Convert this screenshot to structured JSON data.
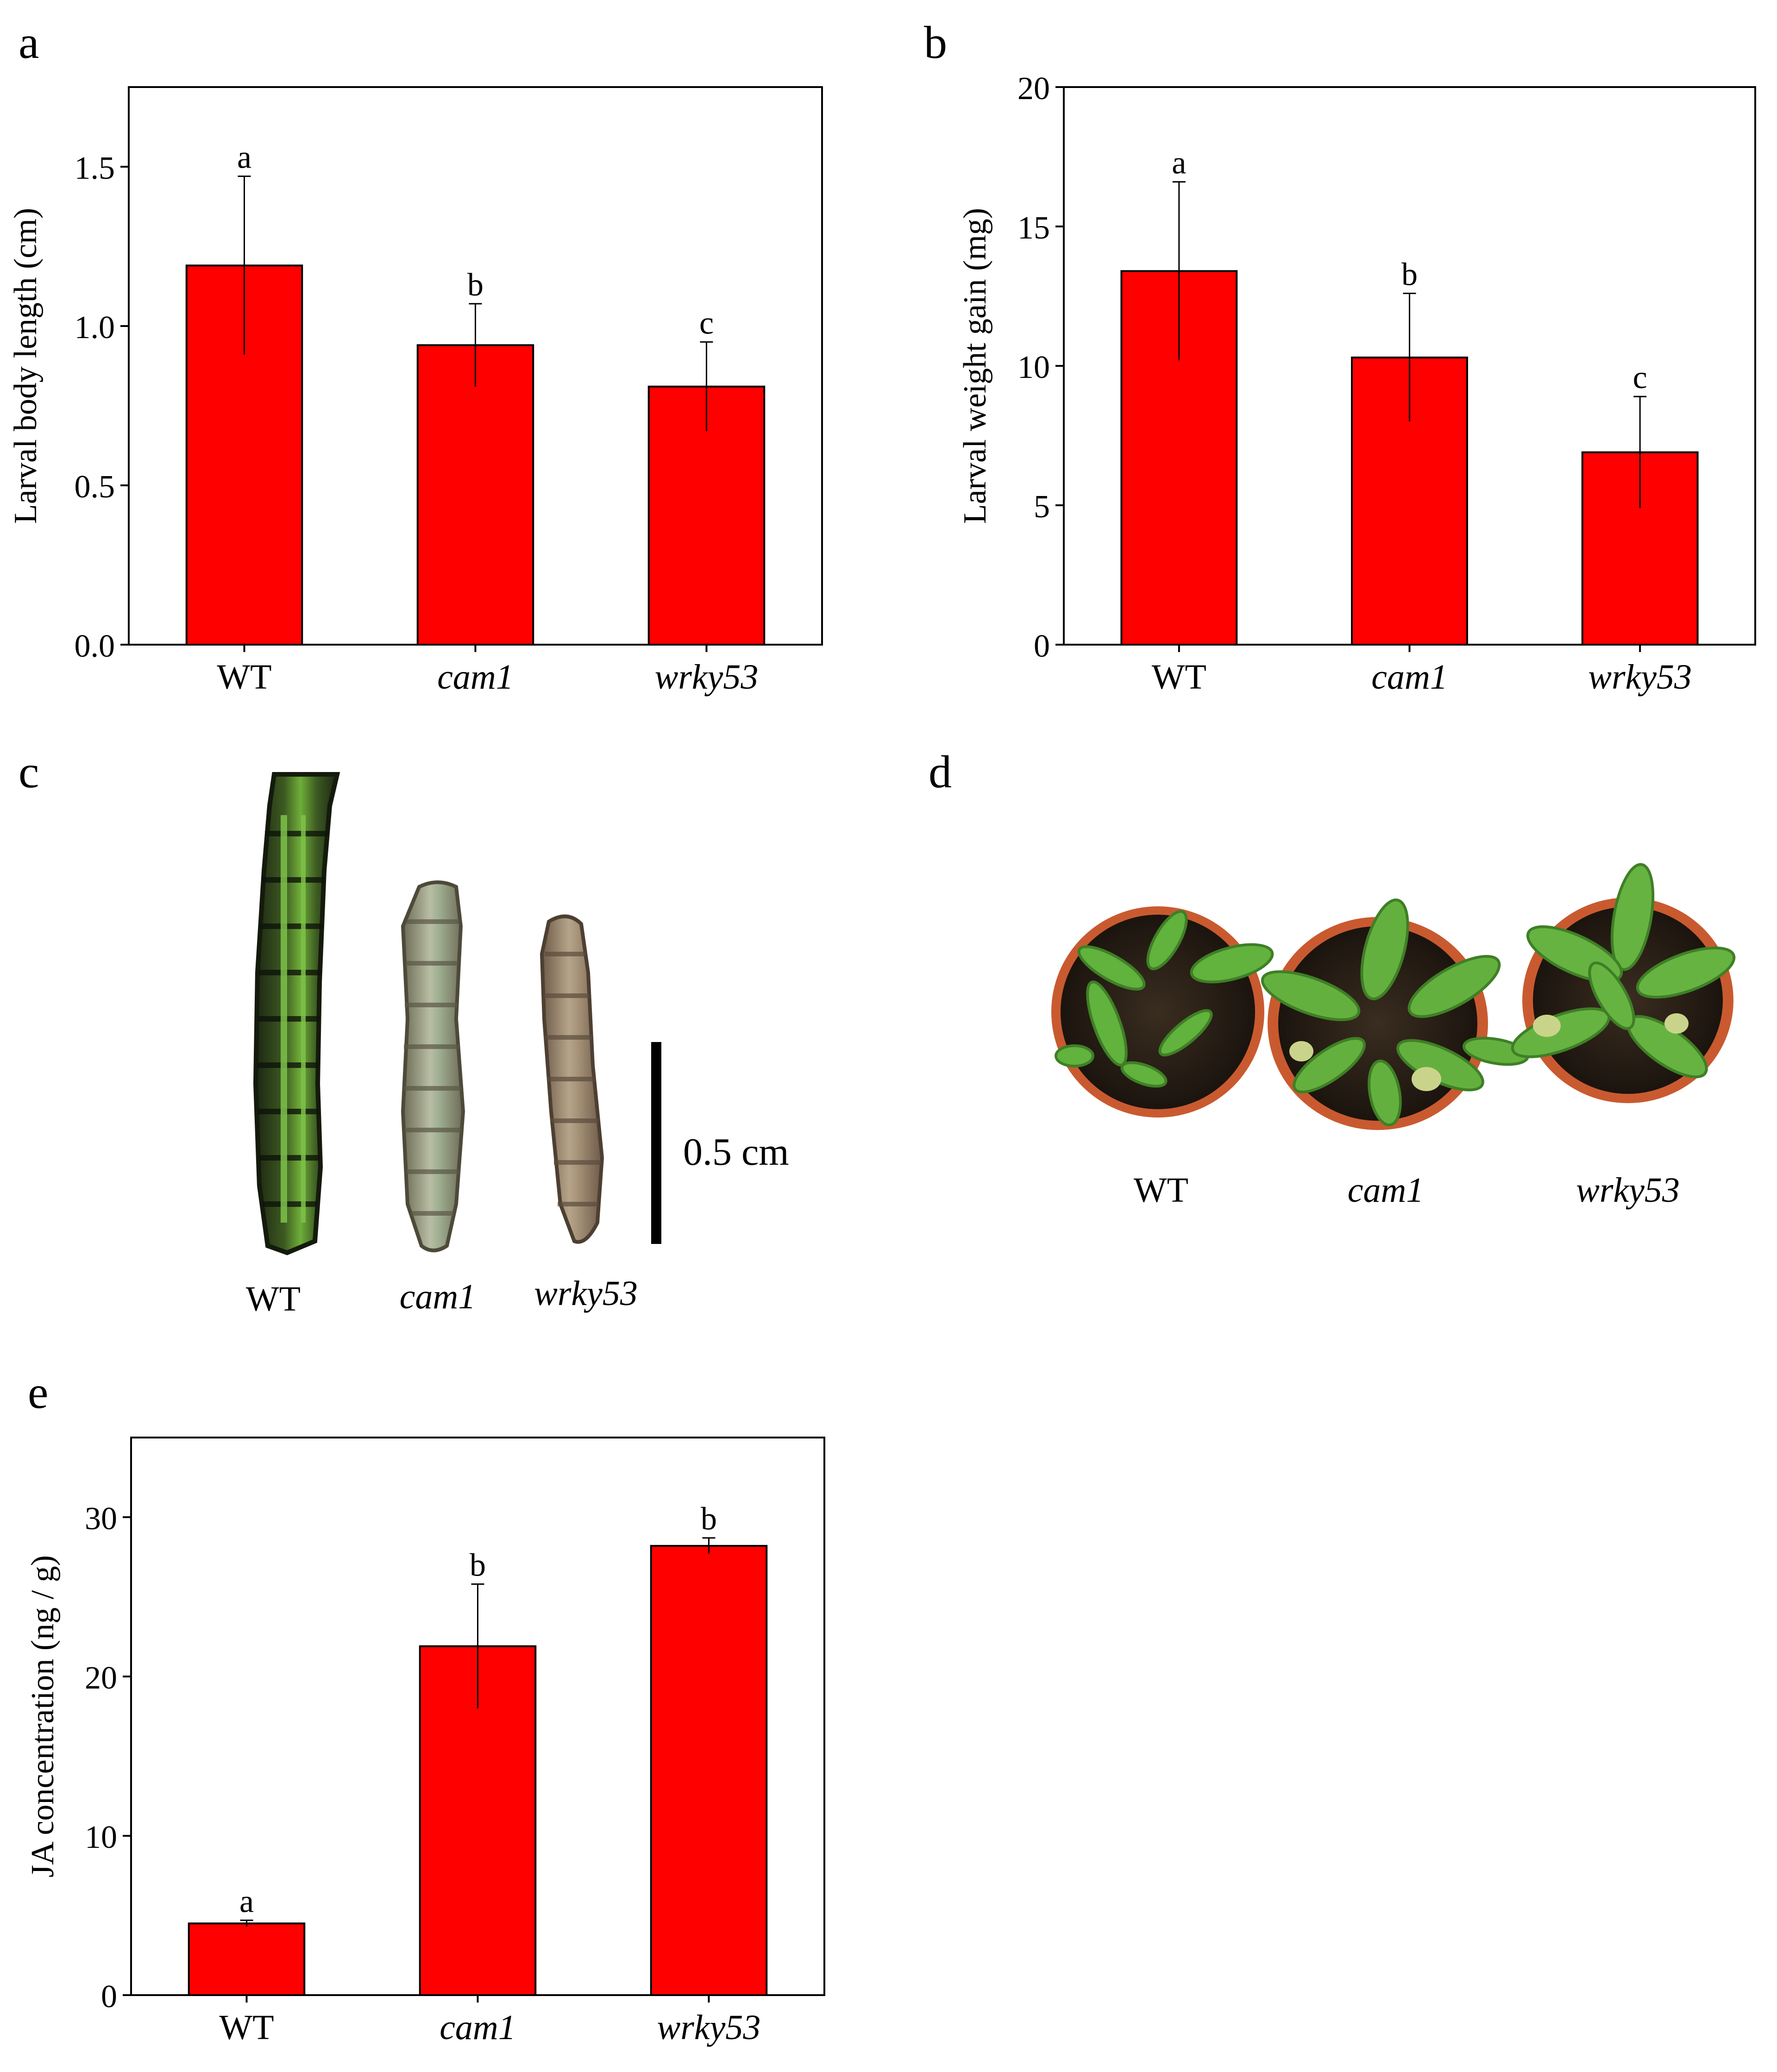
{
  "panels": {
    "a": {
      "letter": "a"
    },
    "b": {
      "letter": "b"
    },
    "c": {
      "letter": "c"
    },
    "d": {
      "letter": "d"
    },
    "e": {
      "letter": "e"
    }
  },
  "chart_data": [
    {
      "id": "a",
      "type": "bar",
      "categories": [
        "WT",
        "cam1",
        "wrky53"
      ],
      "italic_categories": [
        false,
        true,
        true
      ],
      "values": [
        1.19,
        0.94,
        0.81
      ],
      "errors": [
        0.28,
        0.13,
        0.14
      ],
      "significance_letters": [
        "a",
        "b",
        "c"
      ],
      "ylabel": "Larval body length (cm)",
      "xlabel": "",
      "ylim": [
        0,
        1.75
      ],
      "yticks": [
        0.0,
        0.5,
        1.0,
        1.5
      ],
      "ytick_labels": [
        "0.0",
        "0.5",
        "1.0",
        "1.5"
      ],
      "bar_color": "#ff0000"
    },
    {
      "id": "b",
      "type": "bar",
      "categories": [
        "WT",
        "cam1",
        "wrky53"
      ],
      "italic_categories": [
        false,
        true,
        true
      ],
      "values": [
        13.4,
        10.3,
        6.9
      ],
      "errors": [
        3.2,
        2.3,
        2.0
      ],
      "significance_letters": [
        "a",
        "b",
        "c"
      ],
      "ylabel": "Larval weight gain (mg)",
      "xlabel": "",
      "ylim": [
        0,
        20
      ],
      "yticks": [
        0,
        5,
        10,
        15,
        20
      ],
      "ytick_labels": [
        "0",
        "5",
        "10",
        "15",
        "20"
      ],
      "bar_color": "#ff0000"
    },
    {
      "id": "e",
      "type": "bar",
      "categories": [
        "WT",
        "cam1",
        "wrky53"
      ],
      "italic_categories": [
        false,
        true,
        true
      ],
      "values": [
        4.5,
        21.9,
        28.2
      ],
      "errors": [
        0.2,
        3.9,
        0.5
      ],
      "significance_letters": [
        "a",
        "b",
        "b"
      ],
      "ylabel": "JA concentration (ng / g)",
      "xlabel": "",
      "ylim": [
        0,
        35
      ],
      "yticks": [
        0,
        10,
        20,
        30
      ],
      "ytick_labels": [
        "0",
        "10",
        "20",
        "30"
      ],
      "bar_color": "#ff0000"
    }
  ],
  "photo_c": {
    "labels": [
      "WT",
      "cam1",
      "wrky53"
    ],
    "italic": [
      false,
      true,
      true
    ],
    "scale_bar_label": "0.5 cm"
  },
  "photo_d": {
    "labels": [
      "WT",
      "cam1",
      "wrky53"
    ],
    "italic": [
      false,
      true,
      true
    ]
  },
  "colors": {
    "bar": "#ff0000",
    "axis": "#000000",
    "larva_wt": "#2c3a1c",
    "larva_wt_stripe": "#5fa82e",
    "larva_mutant": "#8b8a70",
    "pot": "#d2613a",
    "soil": "#2a2118",
    "leaf": "#5fae3c"
  }
}
